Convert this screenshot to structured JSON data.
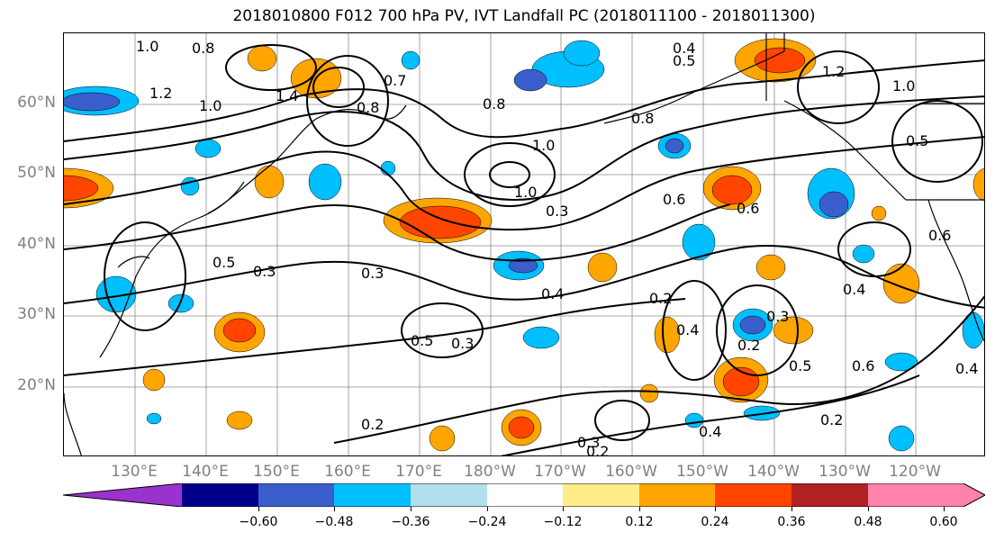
{
  "title": "2018010800 F012 700 hPa PV, IVT Landfall PC (2018011100 - 2018011300)",
  "lat_labels": [
    "60°N",
    "50°N",
    "40°N",
    "30°N",
    "20°N"
  ],
  "lon_labels": [
    "130°E",
    "140°E",
    "150°E",
    "160°E",
    "170°E",
    "180°W",
    "170°W",
    "160°W",
    "150°W",
    "140°W",
    "130°W",
    "120°W"
  ],
  "colorbar": {
    "colors": [
      "#9a32cd",
      "#00008b",
      "#3a5fcd",
      "#00bfff",
      "#b2dfee",
      "#ffffff",
      "#ffec8b",
      "#ffa500",
      "#ff4500",
      "#b22222",
      "#ff82ab"
    ],
    "tick_labels": [
      "−0.60",
      "−0.48",
      "−0.36",
      "−0.24",
      "−0.12",
      "0.12",
      "0.24",
      "0.36",
      "0.48",
      "0.60"
    ]
  },
  "contour_labels": [
    "1.0",
    "0.8",
    "1.0",
    "1.2",
    "1.4",
    "0.7",
    "0.8",
    "0.8",
    "0.4",
    "0.5",
    "1.2",
    "1.0",
    "0.8",
    "1.0",
    "1.0",
    "0.5",
    "0.6",
    "0.6",
    "0.5",
    "0.3",
    "0.3",
    "0.3",
    "0.4",
    "0.5",
    "0.3",
    "0.2",
    "0.2",
    "0.4",
    "0.3",
    "0.2",
    "0.5",
    "0.6",
    "0.4",
    "0.2",
    "0.4",
    "0.6",
    "0.2",
    "0.3",
    "0.4"
  ],
  "chart_data": {
    "type": "map",
    "title": "2018010800 F012 700 hPa PV, IVT Landfall PC (2018011100 - 2018011300)",
    "lat_range": [
      10,
      70
    ],
    "lon_range_east": [
      120,
      250
    ],
    "colorbar_levels": [
      -0.6,
      -0.48,
      -0.36,
      -0.24,
      -0.12,
      0.12,
      0.24,
      0.36,
      0.48,
      0.6
    ]
  }
}
